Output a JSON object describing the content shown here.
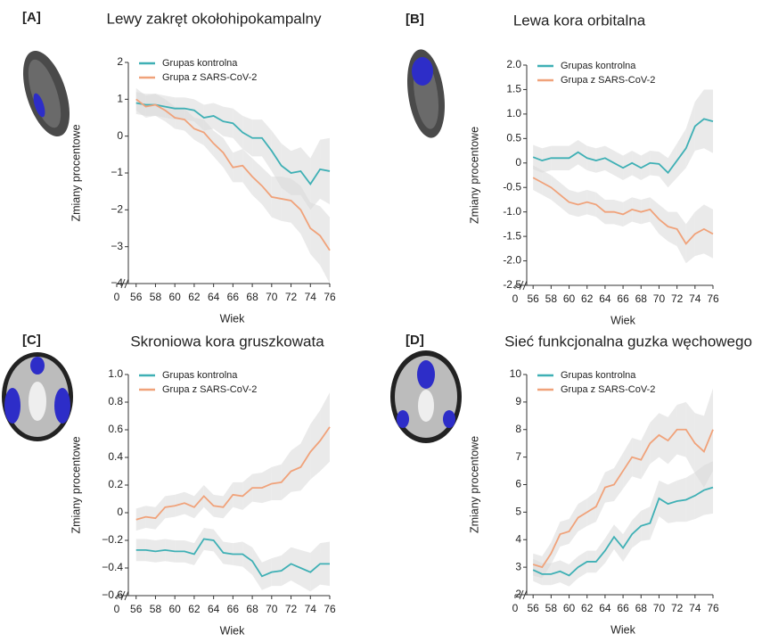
{
  "chart_data": [
    {
      "type": "line",
      "panel": "[A]",
      "title": "Lewy zakręt okołohipokampalny",
      "xlabel": "Wiek",
      "ylabel": "Zmiany procentowe",
      "x": [
        56,
        57,
        58,
        59,
        60,
        61,
        62,
        63,
        64,
        65,
        66,
        67,
        68,
        69,
        70,
        71,
        72,
        73,
        74,
        75,
        76
      ],
      "xlim": [
        54,
        76
      ],
      "xticks": [
        0,
        56,
        58,
        60,
        62,
        64,
        66,
        68,
        70,
        72,
        74,
        76
      ],
      "x_break": true,
      "ylim": [
        -4,
        2
      ],
      "yticks": [
        {
          "value": -4,
          "label": "−4"
        },
        {
          "value": -3,
          "label": "−3"
        },
        {
          "value": -2,
          "label": "−2"
        },
        {
          "value": -1,
          "label": "−1"
        },
        0,
        1,
        2
      ],
      "band_color": "#d9d9d9",
      "series": [
        {
          "name": "Grupas kontrolna",
          "color": "#3fb0b5",
          "values": [
            0.9,
            0.85,
            0.85,
            0.8,
            0.75,
            0.75,
            0.7,
            0.5,
            0.55,
            0.4,
            0.35,
            0.1,
            -0.05,
            -0.05,
            -0.4,
            -0.8,
            -1.0,
            -0.95,
            -1.3,
            -0.9,
            -0.95
          ],
          "ci": [
            0.3,
            0.3,
            0.3,
            0.3,
            0.3,
            0.3,
            0.3,
            0.35,
            0.35,
            0.4,
            0.4,
            0.45,
            0.5,
            0.5,
            0.55,
            0.6,
            0.6,
            0.65,
            0.7,
            0.8,
            0.9
          ]
        },
        {
          "name": "Grupa z SARS-CoV-2",
          "color": "#f0a27a",
          "values": [
            1.0,
            0.8,
            0.85,
            0.7,
            0.5,
            0.45,
            0.2,
            0.1,
            -0.2,
            -0.45,
            -0.85,
            -0.8,
            -1.1,
            -1.35,
            -1.65,
            -1.7,
            -1.75,
            -2.0,
            -2.5,
            -2.7,
            -3.1
          ],
          "ci": [
            0.3,
            0.3,
            0.3,
            0.3,
            0.3,
            0.3,
            0.3,
            0.35,
            0.35,
            0.4,
            0.4,
            0.45,
            0.5,
            0.5,
            0.55,
            0.6,
            0.6,
            0.65,
            0.7,
            0.8,
            0.9
          ]
        }
      ]
    },
    {
      "type": "line",
      "panel": "[B]",
      "title": "Lewa kora orbitalna",
      "xlabel": "Wiek",
      "ylabel": "Zmiany procentowe",
      "x": [
        56,
        57,
        58,
        59,
        60,
        61,
        62,
        63,
        64,
        65,
        66,
        67,
        68,
        69,
        70,
        71,
        72,
        73,
        74,
        75,
        76
      ],
      "xlim": [
        54,
        76
      ],
      "xticks": [
        0,
        56,
        58,
        60,
        62,
        64,
        66,
        68,
        70,
        72,
        74,
        76
      ],
      "x_break": true,
      "ylim": [
        -2.5,
        2.0
      ],
      "yticks": [
        {
          "value": -2.5,
          "label": "-2.5"
        },
        {
          "value": -2,
          "label": "-2.0"
        },
        {
          "value": -1.5,
          "label": "-1.5"
        },
        {
          "value": -1,
          "label": "-1.0"
        },
        {
          "value": -0.5,
          "label": "-0.5"
        },
        0,
        0.5,
        {
          "value": 1,
          "label": "1.0"
        },
        1.5,
        {
          "value": 2,
          "label": "2.0"
        }
      ],
      "band_color": "#d9d9d9",
      "series": [
        {
          "name": "Grupas kontrolna",
          "color": "#3fb0b5",
          "values": [
            0.12,
            0.05,
            0.1,
            0.1,
            0.1,
            0.22,
            0.1,
            0.05,
            0.1,
            0.0,
            -0.1,
            0.0,
            -0.1,
            0.0,
            -0.02,
            -0.2,
            0.05,
            0.3,
            0.75,
            0.9,
            0.85
          ],
          "ci": [
            0.25,
            0.25,
            0.25,
            0.25,
            0.25,
            0.25,
            0.25,
            0.25,
            0.25,
            0.25,
            0.25,
            0.25,
            0.25,
            0.25,
            0.25,
            0.3,
            0.35,
            0.4,
            0.5,
            0.6,
            0.65
          ]
        },
        {
          "name": "Grupa z SARS-CoV-2",
          "color": "#f0a27a",
          "values": [
            -0.3,
            -0.4,
            -0.5,
            -0.65,
            -0.8,
            -0.85,
            -0.8,
            -0.85,
            -1.0,
            -1.0,
            -1.05,
            -0.95,
            -1.0,
            -0.95,
            -1.15,
            -1.3,
            -1.35,
            -1.65,
            -1.45,
            -1.35,
            -1.45
          ],
          "ci": [
            0.25,
            0.25,
            0.25,
            0.25,
            0.25,
            0.25,
            0.25,
            0.25,
            0.25,
            0.25,
            0.25,
            0.25,
            0.25,
            0.25,
            0.3,
            0.3,
            0.35,
            0.4,
            0.45,
            0.5,
            0.5
          ]
        }
      ]
    },
    {
      "type": "line",
      "panel": "[C]",
      "title": "Skroniowa kora gruszkowata",
      "xlabel": "Wiek",
      "ylabel": "Zmiany procentowe",
      "x": [
        56,
        57,
        58,
        59,
        60,
        61,
        62,
        63,
        64,
        65,
        66,
        67,
        68,
        69,
        70,
        71,
        72,
        73,
        74,
        75,
        76
      ],
      "xlim": [
        54,
        76
      ],
      "xticks": [
        0,
        56,
        58,
        60,
        62,
        64,
        66,
        68,
        70,
        72,
        74,
        76
      ],
      "x_break": true,
      "ylim": [
        -0.6,
        1.0
      ],
      "yticks": [
        {
          "value": -0.6,
          "label": "−0.6"
        },
        {
          "value": -0.4,
          "label": "−0.4"
        },
        {
          "value": -0.2,
          "label": "−0.2"
        },
        0,
        0.2,
        0.4,
        0.6,
        0.8,
        {
          "value": 1,
          "label": "1.0"
        }
      ],
      "band_color": "#d9d9d9",
      "series": [
        {
          "name": "Grupas kontrolna",
          "color": "#3fb0b5",
          "values": [
            -0.27,
            -0.27,
            -0.28,
            -0.27,
            -0.28,
            -0.28,
            -0.3,
            -0.19,
            -0.2,
            -0.29,
            -0.3,
            -0.3,
            -0.35,
            -0.46,
            -0.43,
            -0.42,
            -0.37,
            -0.4,
            -0.43,
            -0.37,
            -0.37
          ],
          "ci": [
            0.08,
            0.08,
            0.08,
            0.08,
            0.08,
            0.08,
            0.08,
            0.08,
            0.08,
            0.08,
            0.08,
            0.09,
            0.1,
            0.1,
            0.1,
            0.11,
            0.12,
            0.13,
            0.14,
            0.15,
            0.16
          ]
        },
        {
          "name": "Grupa z SARS-CoV-2",
          "color": "#f0a27a",
          "values": [
            -0.05,
            -0.03,
            -0.04,
            0.04,
            0.05,
            0.07,
            0.04,
            0.12,
            0.05,
            0.04,
            0.13,
            0.12,
            0.18,
            0.18,
            0.21,
            0.22,
            0.3,
            0.33,
            0.44,
            0.52,
            0.62
          ],
          "ci": [
            0.08,
            0.08,
            0.08,
            0.08,
            0.08,
            0.08,
            0.08,
            0.08,
            0.08,
            0.08,
            0.09,
            0.1,
            0.1,
            0.11,
            0.12,
            0.13,
            0.15,
            0.17,
            0.2,
            0.22,
            0.25
          ]
        }
      ]
    },
    {
      "type": "line",
      "panel": "[D]",
      "title": "Sieć funkcjonalna guzka węchowego",
      "xlabel": "Wiek",
      "ylabel": "Zmiany procentowe",
      "x": [
        56,
        57,
        58,
        59,
        60,
        61,
        62,
        63,
        64,
        65,
        66,
        67,
        68,
        69,
        70,
        71,
        72,
        73,
        74,
        75,
        76
      ],
      "xlim": [
        54,
        76
      ],
      "xticks": [
        0,
        56,
        58,
        60,
        62,
        64,
        66,
        68,
        70,
        72,
        74,
        76
      ],
      "x_break": true,
      "ylim": [
        2,
        10
      ],
      "yticks": [
        2,
        3,
        4,
        5,
        6,
        7,
        8,
        9,
        10
      ],
      "band_color": "#d9d9d9",
      "series": [
        {
          "name": "Grupas kontrolna",
          "color": "#3fb0b5",
          "values": [
            2.9,
            2.75,
            2.75,
            2.85,
            2.7,
            3.0,
            3.2,
            3.2,
            3.6,
            4.1,
            3.7,
            4.2,
            4.5,
            4.6,
            5.5,
            5.3,
            5.4,
            5.45,
            5.6,
            5.8,
            5.9
          ],
          "ci": [
            0.4,
            0.4,
            0.4,
            0.4,
            0.4,
            0.4,
            0.4,
            0.4,
            0.45,
            0.45,
            0.5,
            0.5,
            0.55,
            0.6,
            0.65,
            0.7,
            0.75,
            0.8,
            0.85,
            0.9,
            0.95
          ]
        },
        {
          "name": "Grupa z SARS-CoV-2",
          "color": "#f0a27a",
          "values": [
            3.1,
            3.0,
            3.5,
            4.2,
            4.3,
            4.8,
            5.0,
            5.2,
            5.9,
            6.0,
            6.5,
            7.0,
            6.9,
            7.5,
            7.8,
            7.6,
            8.0,
            8.0,
            7.5,
            7.2,
            8.0
          ],
          "ci": [
            0.4,
            0.4,
            0.4,
            0.45,
            0.45,
            0.5,
            0.5,
            0.55,
            0.55,
            0.6,
            0.65,
            0.7,
            0.7,
            0.75,
            0.8,
            0.85,
            0.9,
            1.0,
            1.1,
            1.3,
            1.5
          ]
        }
      ]
    }
  ]
}
